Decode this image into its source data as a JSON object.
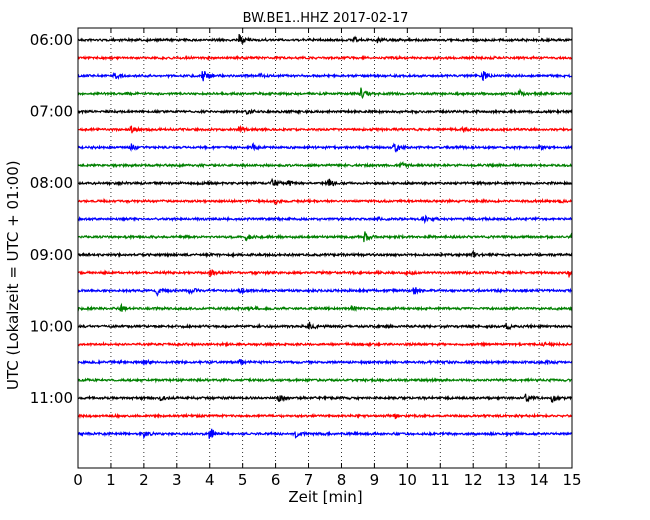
{
  "chart_data": {
    "type": "line",
    "title": "BW.BE1..HHZ 2017-02-17",
    "xlabel": "Zeit  [min]",
    "ylabel": "UTC (Lokalzeit = UTC + 01:00)",
    "xlim": [
      0,
      15
    ],
    "xticks": [
      "0",
      "1",
      "2",
      "3",
      "4",
      "5",
      "6",
      "7",
      "8",
      "9",
      "10",
      "11",
      "12",
      "13",
      "14",
      "15"
    ],
    "yticks": [
      "06:00",
      "07:00",
      "08:00",
      "09:00",
      "10:00",
      "11:00"
    ],
    "grid": true,
    "row_interval_minutes": 15,
    "color_cycle": [
      "#000000",
      "#ff0000",
      "#0000ff",
      "#008000"
    ],
    "traces": [
      {
        "start": "06:00",
        "events": [
          [
            4.9,
            0.7
          ],
          [
            8.4,
            0.4
          ],
          [
            9.1,
            0.3
          ]
        ]
      },
      {
        "start": "06:15",
        "events": []
      },
      {
        "start": "06:30",
        "events": [
          [
            1.1,
            0.4
          ],
          [
            3.8,
            1.0
          ],
          [
            5.5,
            0.3
          ],
          [
            12.3,
            0.7
          ]
        ]
      },
      {
        "start": "06:45",
        "events": [
          [
            8.6,
            1.0
          ],
          [
            13.4,
            0.5
          ]
        ]
      },
      {
        "start": "07:00",
        "events": [
          [
            5.1,
            0.3
          ]
        ]
      },
      {
        "start": "07:15",
        "events": [
          [
            1.6,
            0.5
          ],
          [
            4.9,
            0.3
          ],
          [
            11.7,
            0.3
          ]
        ]
      },
      {
        "start": "07:30",
        "events": [
          [
            1.6,
            0.5
          ],
          [
            5.3,
            0.4
          ],
          [
            9.6,
            0.9
          ],
          [
            14.0,
            0.3
          ]
        ]
      },
      {
        "start": "07:45",
        "events": [
          [
            9.8,
            0.4
          ]
        ]
      },
      {
        "start": "08:00",
        "events": [
          [
            5.9,
            0.6
          ],
          [
            6.4,
            0.5
          ],
          [
            7.6,
            0.6
          ]
        ]
      },
      {
        "start": "08:15",
        "events": [
          [
            6.0,
            0.4
          ],
          [
            14.6,
            0.3
          ]
        ]
      },
      {
        "start": "08:30",
        "events": [
          [
            9.1,
            0.3
          ],
          [
            10.5,
            0.4
          ]
        ]
      },
      {
        "start": "08:45",
        "events": [
          [
            5.1,
            0.5
          ],
          [
            8.7,
            0.8
          ],
          [
            15.0,
            0.5
          ]
        ]
      },
      {
        "start": "09:00",
        "events": [
          [
            12.0,
            0.3
          ]
        ]
      },
      {
        "start": "09:15",
        "events": [
          [
            4.0,
            0.4
          ],
          [
            10.0,
            0.4
          ],
          [
            14.9,
            0.5
          ]
        ]
      },
      {
        "start": "09:30",
        "events": [
          [
            2.4,
            0.5
          ],
          [
            3.4,
            0.5
          ],
          [
            4.9,
            0.5
          ],
          [
            10.2,
            0.5
          ]
        ]
      },
      {
        "start": "09:45",
        "events": [
          [
            1.3,
            0.5
          ],
          [
            5.2,
            0.3
          ],
          [
            8.3,
            0.3
          ]
        ]
      },
      {
        "start": "10:00",
        "events": [
          [
            7.0,
            0.6
          ],
          [
            13.0,
            0.6
          ]
        ]
      },
      {
        "start": "10:15",
        "events": [
          [
            14.1,
            0.3
          ]
        ]
      },
      {
        "start": "10:30",
        "events": [
          [
            2.0,
            0.3
          ],
          [
            4.9,
            0.4
          ],
          [
            14.2,
            0.4
          ]
        ]
      },
      {
        "start": "10:45",
        "events": []
      },
      {
        "start": "11:00",
        "events": [
          [
            2.5,
            0.3
          ],
          [
            6.1,
            0.5
          ],
          [
            13.6,
            0.7
          ],
          [
            14.4,
            0.5
          ]
        ]
      },
      {
        "start": "11:15",
        "events": [
          [
            9.6,
            0.3
          ]
        ]
      },
      {
        "start": "11:30",
        "events": [
          [
            2.0,
            0.4
          ],
          [
            4.0,
            0.9
          ],
          [
            6.6,
            0.4
          ]
        ]
      }
    ]
  }
}
